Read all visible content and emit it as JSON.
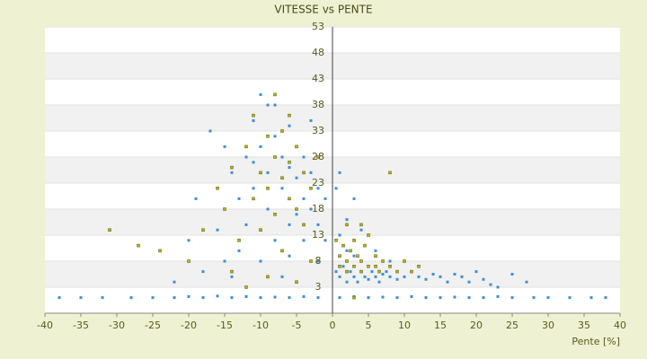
{
  "chart_data": {
    "type": "scatter",
    "title": "VITESSE vs PENTE",
    "x_label": "Pente [%]",
    "xlim": [
      -40,
      40
    ],
    "xticks": [
      -40,
      -35,
      -30,
      -25,
      -20,
      -15,
      -10,
      -5,
      0,
      5,
      10,
      15,
      20,
      25,
      30,
      35,
      40
    ],
    "ylim": [
      -2,
      53
    ],
    "yticks": [
      3,
      8,
      13,
      18,
      23,
      28,
      33,
      38,
      43,
      48,
      53
    ],
    "grid": true,
    "series": [
      {
        "color": "#3d8fd6",
        "x": [
          -38,
          -35,
          -32,
          -28,
          -25,
          -22,
          -20,
          -18,
          -16,
          -14,
          -12,
          -10,
          -8,
          -6,
          -4,
          -2,
          1,
          3,
          5,
          7,
          9,
          11,
          13,
          15,
          17,
          19,
          21,
          23,
          25,
          28,
          30,
          33,
          36,
          38,
          -17,
          -15,
          -14,
          -13,
          -12,
          -11,
          -10,
          -10,
          -9,
          -9,
          -8,
          -8,
          -7,
          -7,
          -6,
          -6,
          -6,
          -5,
          -5,
          -4,
          -4,
          -4,
          -3,
          -3,
          -3,
          -2,
          -2,
          -1,
          -1,
          -11,
          -12,
          -13,
          -15,
          -18,
          -20,
          -22,
          -19,
          -16,
          -14,
          -10,
          -8,
          -7,
          -9,
          -11,
          -5,
          -6,
          -2,
          0.5,
          1,
          1.5,
          2,
          2.5,
          3,
          3.5,
          4,
          4.5,
          5,
          5.5,
          6,
          6.5,
          7,
          7.5,
          8,
          9,
          10,
          11,
          12,
          13,
          14,
          15,
          16,
          17,
          18,
          19,
          20,
          21,
          22,
          23,
          25,
          27,
          2,
          3,
          1,
          2,
          0.5,
          1,
          3,
          4,
          6,
          8
        ],
        "values": [
          1,
          1,
          1,
          1,
          1,
          1,
          1.2,
          1,
          1.3,
          1,
          1.2,
          1,
          1.1,
          1,
          1.2,
          1,
          1,
          1.2,
          1,
          1.1,
          1,
          1.2,
          1,
          1,
          1.1,
          1,
          1,
          1.2,
          1,
          1,
          1,
          1,
          1,
          1,
          33,
          30,
          25,
          20,
          28,
          35,
          40,
          30,
          25,
          18,
          38,
          32,
          28,
          22,
          34,
          26,
          15,
          30,
          24,
          28,
          20,
          12,
          35,
          25,
          18,
          22,
          15,
          20,
          12,
          22,
          15,
          10,
          8,
          6,
          12,
          4,
          20,
          14,
          5,
          8,
          12,
          5,
          38,
          27,
          17,
          9,
          8,
          6,
          5,
          7,
          4,
          6,
          5,
          4,
          6,
          5,
          4.5,
          6,
          5,
          4,
          5.5,
          6,
          5,
          4.5,
          5,
          6,
          5,
          4.5,
          5.5,
          5,
          4,
          5.5,
          5,
          4,
          6,
          4.5,
          3.5,
          3,
          5.5,
          4,
          10,
          9,
          13,
          16,
          22,
          25,
          20,
          14,
          10,
          8
        ]
      },
      {
        "color": "#b5b513",
        "x": [
          -31,
          -27,
          -24,
          -20,
          -18,
          -16,
          -15,
          -14,
          -13,
          -12,
          -11,
          -11,
          -10,
          -10,
          -9,
          -9,
          -8,
          -8,
          -8,
          -7,
          -7,
          -7,
          -6,
          -6,
          -6,
          -5,
          -5,
          -4,
          -4,
          -3,
          -3,
          -2,
          -14,
          -12,
          -9,
          -5,
          0.5,
          1,
          1.5,
          2,
          2.5,
          3,
          3,
          3.5,
          4,
          4.5,
          5,
          5,
          6,
          6.5,
          7,
          8,
          8,
          9,
          10,
          11,
          2,
          4,
          1,
          2,
          4,
          6,
          3,
          12
        ],
        "values": [
          14,
          11,
          10,
          8,
          14,
          22,
          18,
          26,
          12,
          30,
          20,
          36,
          25,
          14,
          32,
          22,
          40,
          28,
          17,
          33,
          24,
          10,
          36,
          27,
          20,
          30,
          18,
          25,
          15,
          22,
          8,
          28,
          6,
          3,
          5,
          4,
          12,
          9,
          11,
          8,
          10,
          7,
          12,
          9,
          8,
          11,
          7,
          13,
          9,
          6,
          8,
          7,
          25,
          6,
          8,
          6,
          15,
          15,
          7,
          6,
          6,
          7,
          1,
          7
        ]
      }
    ]
  }
}
